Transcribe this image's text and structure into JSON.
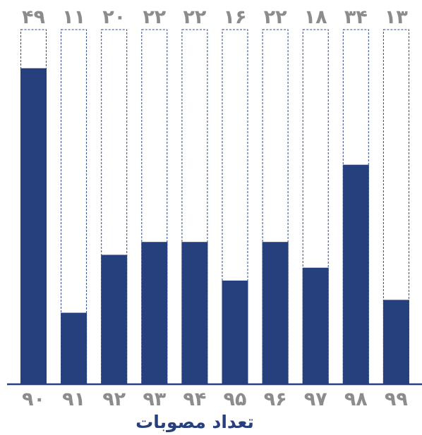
{
  "chart_data": {
    "type": "bar",
    "title": "",
    "xlabel": "تعداد مصوبات",
    "ylabel": "",
    "categories": [
      "۹۰",
      "۹۱",
      "۹۲",
      "۹۳",
      "۹۴",
      "۹۵",
      "۹۶",
      "۹۷",
      "۹۸",
      "۹۹"
    ],
    "values": [
      49,
      11,
      20,
      22,
      22,
      16,
      22,
      18,
      34,
      13
    ],
    "value_labels": [
      "۴۹",
      "۱۱",
      "۲۰",
      "۲۲",
      "۲۲",
      "۱۶",
      "۲۲",
      "۱۸",
      "۳۴",
      "۱۳"
    ],
    "ylim": [
      0,
      55
    ],
    "grid": false,
    "legend": "none",
    "colors": {
      "bar": "#263f7d",
      "outline": "#2e4a8a",
      "label": "#8c8c8c",
      "axis": "#263f7d",
      "xlabel": "#263f7d"
    }
  }
}
